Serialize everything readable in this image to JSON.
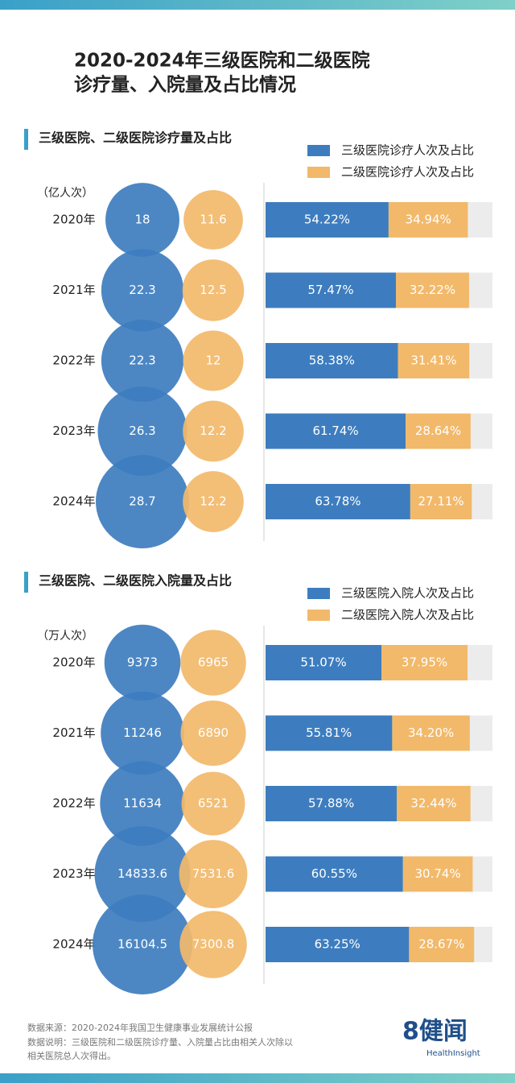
{
  "title_lines": [
    "2020-2024年三级医院和二级医院",
    "诊疗量、入院量及占比情况"
  ],
  "chart_data": [
    {
      "type": "bubble",
      "title": "三级医院、二级医院诊疗量及占比",
      "unit": "（亿人次）",
      "categories": [
        "2020年",
        "2021年",
        "2022年",
        "2023年",
        "2024年"
      ],
      "xlim": [
        0,
        100
      ],
      "series": [
        {
          "name": "三级医院诊疗人次及占比",
          "color": "#3d7dbf",
          "values": [
            18,
            22.3,
            22.3,
            26.3,
            28.7
          ],
          "shares": [
            54.22,
            57.47,
            58.38,
            61.74,
            63.78
          ],
          "share_labels": [
            "54.22%",
            "57.47%",
            "58.38%",
            "61.74%",
            "63.78%"
          ]
        },
        {
          "name": "二级医院诊疗人次及占比",
          "color": "#f2b96a",
          "values": [
            11.6,
            12.5,
            12,
            12.2,
            12.2
          ],
          "shares": [
            34.94,
            32.22,
            31.41,
            28.64,
            27.11
          ],
          "share_labels": [
            "34.94%",
            "32.22%",
            "31.41%",
            "28.64%",
            "27.11%"
          ]
        }
      ]
    },
    {
      "type": "bubble",
      "title": "三级医院、二级医院入院量及占比",
      "unit": "（万人次）",
      "categories": [
        "2020年",
        "2021年",
        "2022年",
        "2023年",
        "2024年"
      ],
      "xlim": [
        0,
        100
      ],
      "series": [
        {
          "name": "三级医院入院人次及占比",
          "color": "#3d7dbf",
          "values": [
            9373,
            11246,
            11634,
            14833.6,
            16104.5
          ],
          "shares": [
            51.07,
            55.81,
            57.88,
            60.55,
            63.25
          ],
          "share_labels": [
            "51.07%",
            "55.81%",
            "57.88%",
            "60.55%",
            "63.25%"
          ]
        },
        {
          "name": "二级医院入院人次及占比",
          "color": "#f2b96a",
          "values": [
            6965,
            6890,
            6521,
            7531.6,
            7300.8
          ],
          "shares": [
            37.95,
            34.2,
            32.44,
            30.74,
            28.67
          ],
          "share_labels": [
            "37.95%",
            "34.20%",
            "32.44%",
            "30.74%",
            "28.67%"
          ]
        }
      ]
    }
  ],
  "footer": {
    "source": "数据来源：2020-2024年我国卫生健康事业发展统计公报",
    "note_lines": [
      "数据说明：三级医院和二级医院诊疗量、入院量占比由相关人次除以",
      "相关医院总人次得出。"
    ]
  },
  "brand": {
    "logo": "8健闻",
    "sub": "HealthInsight"
  }
}
